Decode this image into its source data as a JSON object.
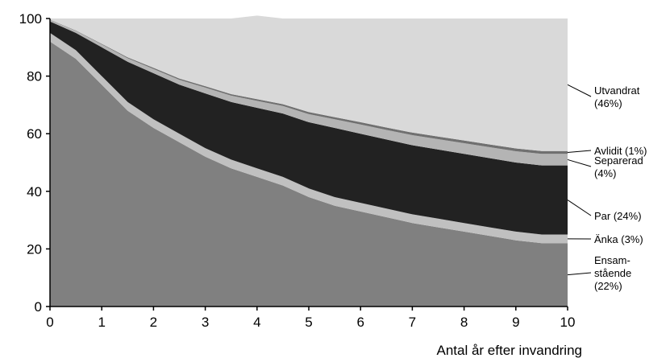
{
  "chart_data": {
    "type": "area",
    "stacked": true,
    "xlabel": "Antal år efter invandring",
    "ylabel": "",
    "title": "",
    "xlim": [
      0,
      10
    ],
    "ylim": [
      0,
      100
    ],
    "xticks": [
      0,
      1,
      2,
      3,
      4,
      5,
      6,
      7,
      8,
      9,
      10
    ],
    "yticks": [
      0,
      20,
      40,
      60,
      80,
      100
    ],
    "grid": false,
    "legend_placement": "right",
    "x": [
      0,
      0.5,
      1,
      1.5,
      2,
      2.5,
      3,
      3.5,
      4,
      4.5,
      5,
      5.5,
      6,
      6.5,
      7,
      7.5,
      8,
      8.5,
      9,
      9.5,
      10
    ],
    "series": [
      {
        "name": "Ensam-stående (22%)",
        "label_lines": [
          "Ensam-",
          "stående",
          "(22%)"
        ],
        "color": "#808080",
        "values": [
          92,
          86,
          77,
          68,
          62,
          57,
          52,
          48,
          45,
          42,
          38,
          35,
          33,
          31,
          29,
          27.5,
          26,
          24.5,
          23,
          22,
          22
        ]
      },
      {
        "name": "Änka (3%)",
        "label_lines": [
          "Änka (3%)"
        ],
        "color": "#c0c0c0",
        "values": [
          3,
          3,
          3,
          3,
          3,
          3,
          3,
          3,
          3,
          3,
          3,
          3,
          3,
          3,
          3,
          3,
          3,
          3,
          3,
          3,
          3
        ]
      },
      {
        "name": "Par (24%)",
        "label_lines": [
          "Par (24%)"
        ],
        "color": "#222222",
        "values": [
          4,
          6,
          10,
          14,
          16,
          17,
          19,
          20,
          21,
          22,
          23,
          24,
          24,
          24,
          24,
          24,
          24,
          24,
          24,
          24,
          24
        ]
      },
      {
        "name": "Separerad (4%)",
        "label_lines": [
          "Separerad",
          "(4%)"
        ],
        "color": "#b4b4b4",
        "values": [
          0.5,
          0.7,
          1,
          1.2,
          1.5,
          1.7,
          2,
          2.2,
          2.4,
          2.6,
          2.8,
          3,
          3.2,
          3.3,
          3.5,
          3.6,
          3.7,
          3.8,
          3.9,
          4,
          4
        ]
      },
      {
        "name": "Avlidit (1%)",
        "label_lines": [
          "Avlidit (1%)"
        ],
        "color": "#707070",
        "values": [
          0.1,
          0.15,
          0.2,
          0.3,
          0.4,
          0.45,
          0.5,
          0.55,
          0.6,
          0.65,
          0.7,
          0.75,
          0.8,
          0.85,
          0.9,
          0.9,
          0.95,
          0.95,
          1,
          1,
          1
        ]
      },
      {
        "name": "Utvandrat (46%)",
        "label_lines": [
          "Utvandrat",
          "(46%)"
        ],
        "color": "#d9d9d9",
        "values": [
          0.4,
          4.15,
          8.8,
          13.5,
          17.1,
          20.85,
          23.5,
          26.25,
          29,
          29.75,
          32.5,
          34.25,
          36,
          37.85,
          39.6,
          41,
          42.35,
          43.75,
          45.1,
          46,
          46
        ]
      }
    ]
  }
}
